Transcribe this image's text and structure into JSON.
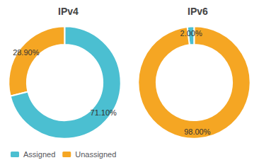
{
  "chart_data": [
    {
      "type": "pie",
      "title": "IPv4",
      "categories": [
        "Unassigned",
        "Assigned"
      ],
      "values": [
        28.9,
        71.1
      ],
      "value_labels": [
        "28.90%",
        "71.10%"
      ],
      "colors": [
        "#F5A623",
        "#4BBFD1"
      ],
      "data_labels": true
    },
    {
      "type": "pie",
      "title": "IPv6",
      "categories": [
        "Assigned",
        "Unassigned"
      ],
      "values": [
        2.0,
        98.0
      ],
      "value_labels": [
        "2.00%",
        "98.00%"
      ],
      "colors": [
        "#4BBFD1",
        "#F5A623"
      ],
      "data_labels": true,
      "legend": "lower left"
    }
  ]
}
